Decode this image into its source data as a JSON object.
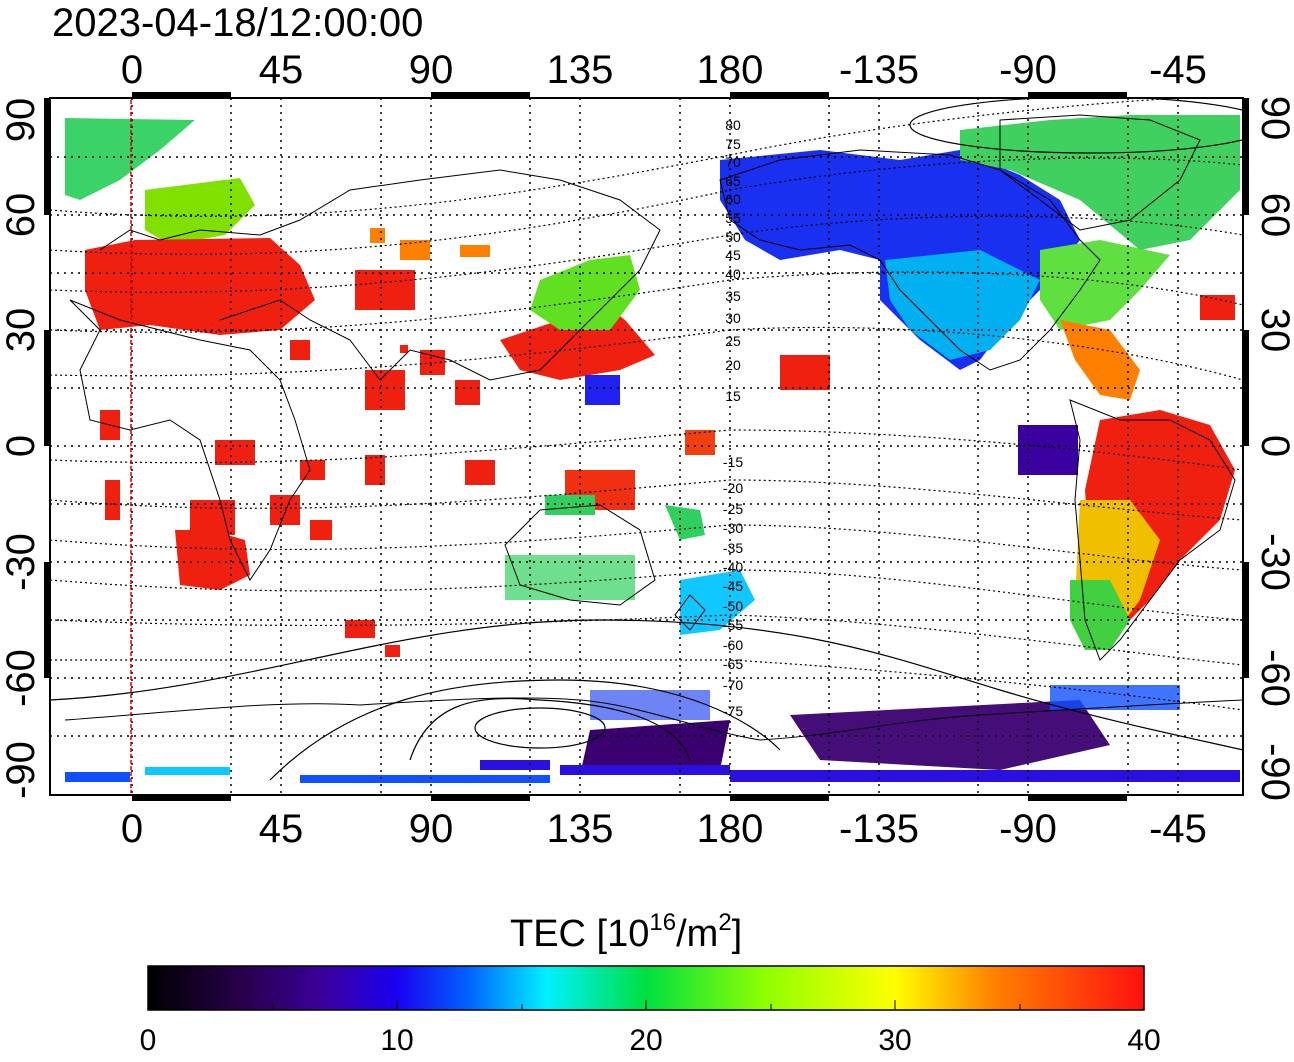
{
  "title": "2023-04-18/12:00:00",
  "map": {
    "lon_ticks": [
      "0",
      "45",
      "90",
      "135",
      "180",
      "-135",
      "-90",
      "-45"
    ],
    "lat_ticks": [
      "90",
      "60",
      "30",
      "0",
      "-30",
      "-60",
      "-90"
    ],
    "contour_labels": [
      "80",
      "75",
      "70",
      "65",
      "60",
      "55",
      "50",
      "45",
      "40",
      "35",
      "30",
      "25",
      "20",
      "15",
      "-15",
      "-20",
      "-25",
      "-30",
      "-35",
      "-40",
      "-45",
      "-50",
      "-55",
      "-60",
      "-65",
      "-70",
      "-75"
    ],
    "reference_line_color": "#e00000"
  },
  "colorbar": {
    "title_main": "TEC  [10",
    "title_exp1": "16",
    "title_mid": "/m",
    "title_exp2": "2",
    "title_end": "]",
    "ticks": [
      "0",
      "10",
      "20",
      "30",
      "40"
    ],
    "range": [
      0,
      40
    ],
    "colors": [
      "#000000",
      "#3a0070",
      "#1a00e0",
      "#0050ff",
      "#00e8ff",
      "#00e000",
      "#a0ff00",
      "#ffff00",
      "#ff8000",
      "#ff2000"
    ]
  }
}
